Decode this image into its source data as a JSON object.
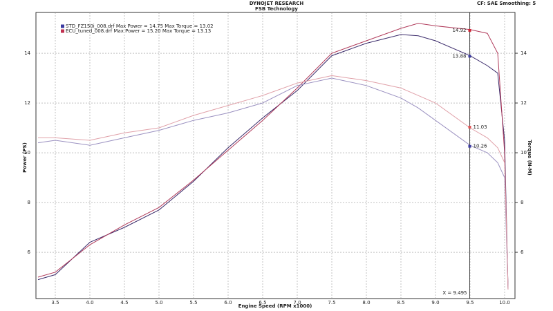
{
  "chart_data": {
    "type": "line",
    "title": "DYNOJET RESEARCH",
    "subtitle": "FSB Technology",
    "corner_note": "CF: SAE  Smoothing: 5",
    "x_label": "Engine Speed (RPM x1000)",
    "y_label": "Power (PS)",
    "y2_label": "Torque (N-M)",
    "legend": [
      {
        "label": "STD_FZ150i_008.drf Max Power = 14.75   Max Torque = 13.02",
        "color": "#3a3aa0"
      },
      {
        "label": "ECU_tuned_008.drf Max Power = 15.20   Max Torque = 13.13",
        "color": "#c03050"
      }
    ],
    "x": [
      3.25,
      3.5,
      4.0,
      4.5,
      5.0,
      5.5,
      6.0,
      6.5,
      7.0,
      7.5,
      8.0,
      8.5,
      8.75,
      9.0,
      9.5,
      9.75,
      9.9,
      10.0,
      10.05
    ],
    "series": [
      {
        "color": "#3a2a6a",
        "values": [
          4.9,
          5.1,
          6.4,
          7.0,
          7.7,
          8.85,
          10.2,
          11.4,
          12.5,
          13.9,
          14.4,
          14.75,
          14.7,
          14.5,
          13.9,
          13.5,
          13.2,
          10.5,
          4.5
        ],
        "cursor_value": 13.88,
        "marker_color": "#3a3aa0"
      },
      {
        "color": "#b03a5a",
        "values": [
          5.0,
          5.2,
          6.3,
          7.1,
          7.8,
          8.9,
          10.1,
          11.3,
          12.6,
          14.0,
          14.5,
          15.0,
          15.2,
          15.1,
          14.95,
          14.8,
          14.0,
          10.0,
          4.5
        ],
        "cursor_value": 14.92,
        "marker_color": "#d02030"
      },
      {
        "color": "#9a90c0",
        "axis": "y2",
        "values": [
          10.4,
          10.5,
          10.3,
          10.6,
          10.9,
          11.3,
          11.6,
          12.0,
          12.7,
          13.0,
          12.7,
          12.2,
          11.8,
          11.3,
          10.3,
          10.0,
          9.6,
          9.0,
          4.5
        ],
        "cursor_value": 10.26,
        "marker_color": "#3a3aa0"
      },
      {
        "color": "#e0a0a8",
        "axis": "y2",
        "values": [
          10.6,
          10.6,
          10.5,
          10.8,
          11.0,
          11.5,
          11.9,
          12.3,
          12.8,
          13.1,
          12.9,
          12.6,
          12.3,
          12.0,
          11.0,
          10.6,
          10.2,
          9.6,
          4.5
        ],
        "cursor_value": 11.03,
        "marker_color": "#e05050"
      }
    ],
    "cursor": {
      "value": 9.495,
      "label": "X = 9.495"
    },
    "xlim": [
      3.22,
      10.15
    ],
    "xticks": [
      3.5,
      {
        "value": 4,
        "label": "4.0"
      },
      4.5,
      {
        "value": 5,
        "label": "5.0"
      },
      5.5,
      {
        "value": 6,
        "label": "6.0"
      },
      6.5,
      {
        "value": 7,
        "label": "7.0"
      },
      7.5,
      {
        "value": 8,
        "label": "8.0"
      },
      8.5,
      {
        "value": 9,
        "label": "9.0"
      },
      9.5,
      {
        "value": 10,
        "label": "10.0"
      }
    ],
    "ylim": [
      4.14,
      15.64
    ],
    "yticks": [
      6,
      8,
      10,
      12,
      14
    ],
    "y2lim": [
      4.14,
      15.64
    ],
    "y2ticks": [
      6,
      8,
      10,
      12,
      14
    ],
    "grid": true
  }
}
